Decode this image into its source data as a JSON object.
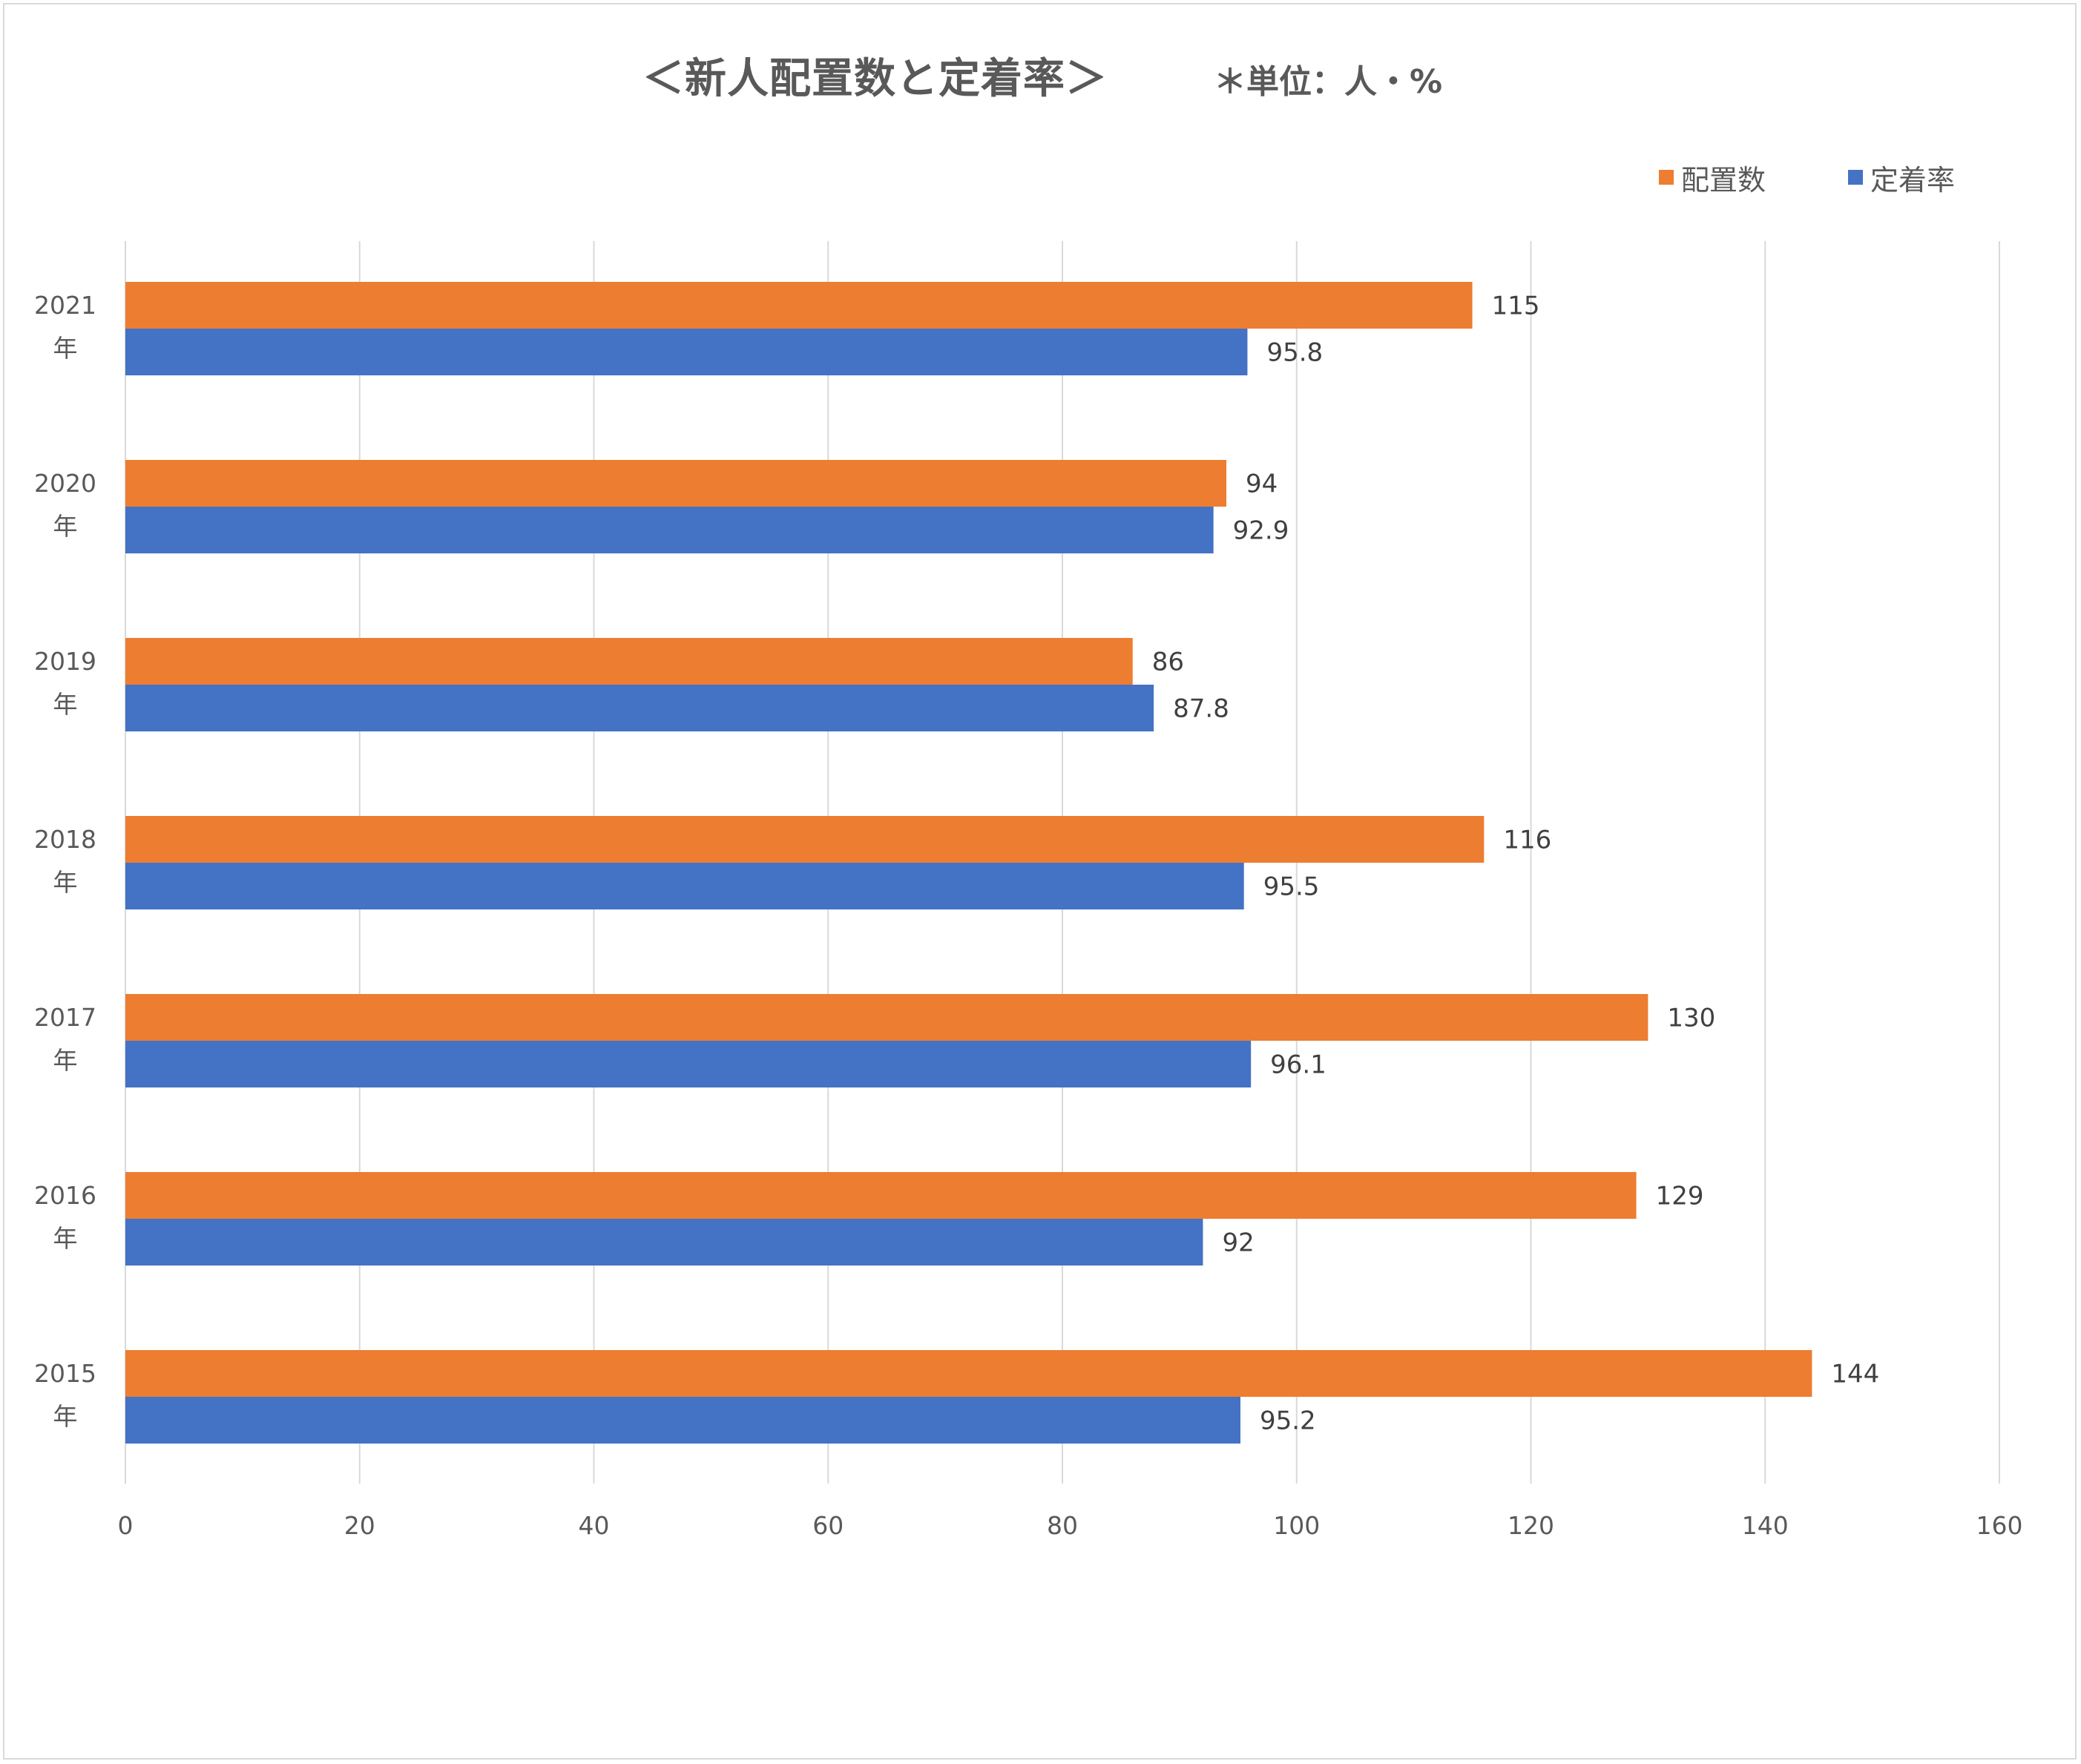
{
  "title": "＜新人配置数と定着率＞",
  "unit_note": "＊単位：人・%",
  "legend": [
    {
      "label": "配置数",
      "color": "#ED7D31"
    },
    {
      "label": "定着率",
      "color": "#4472C4"
    }
  ],
  "chart_data": {
    "type": "bar",
    "orientation": "horizontal",
    "title": "＜新人配置数と定着率＞",
    "categories": [
      "2021年",
      "2020年",
      "2019年",
      "2018年",
      "2017年",
      "2016年",
      "2015年"
    ],
    "category_lines": [
      [
        "2021",
        "年"
      ],
      [
        "2020",
        "年"
      ],
      [
        "2019",
        "年"
      ],
      [
        "2018",
        "年"
      ],
      [
        "2017",
        "年"
      ],
      [
        "2016",
        "年"
      ],
      [
        "2015",
        "年"
      ]
    ],
    "series": [
      {
        "name": "配置数",
        "color": "#ED7D31",
        "values": [
          115,
          94,
          86,
          116,
          130,
          129,
          144
        ]
      },
      {
        "name": "定着率",
        "color": "#4472C4",
        "values": [
          95.8,
          92.9,
          87.8,
          95.5,
          96.1,
          92,
          95.2
        ]
      }
    ],
    "xlim": [
      0,
      160
    ],
    "xticks": [
      0,
      20,
      40,
      60,
      80,
      100,
      120,
      140,
      160
    ],
    "grid": true,
    "legend_position": "top-right",
    "data_labels": true
  }
}
